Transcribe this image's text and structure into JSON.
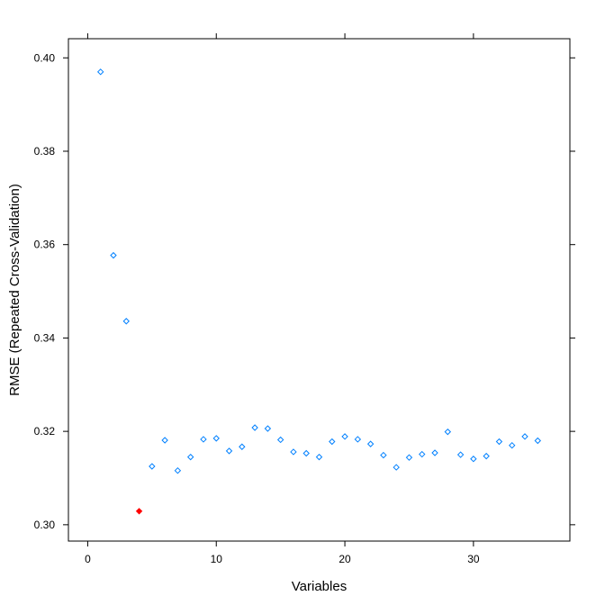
{
  "chart_data": {
    "type": "scatter",
    "title": "",
    "xlabel": "Variables",
    "ylabel": "RMSE (Repeated Cross-Validation)",
    "xlim": [
      -1.5,
      37.5
    ],
    "ylim": [
      0.2965,
      0.4041
    ],
    "x_ticks": [
      0,
      10,
      20,
      30
    ],
    "x_tick_labels": [
      "0",
      "10",
      "20",
      "30"
    ],
    "y_ticks": [
      0.3,
      0.32,
      0.34,
      0.36,
      0.38,
      0.4
    ],
    "y_tick_labels": [
      "0.30",
      "0.32",
      "0.34",
      "0.36",
      "0.38",
      "0.40"
    ],
    "grid": false,
    "legend": "none",
    "point_color": "#0080ff",
    "highlight_color": "#ff0000",
    "series": [
      {
        "x": [
          1,
          2,
          3,
          4,
          5,
          6,
          7,
          8,
          9,
          10,
          11,
          12,
          13,
          14,
          15,
          16,
          17,
          18,
          19,
          20,
          21,
          22,
          23,
          24,
          25,
          26,
          27,
          28,
          29,
          30,
          31,
          32,
          33,
          34,
          35
        ],
        "y": [
          0.397,
          0.3577,
          0.3436,
          0.3029,
          0.3125,
          0.3181,
          0.3116,
          0.3145,
          0.3183,
          0.3185,
          0.3158,
          0.3167,
          0.3208,
          0.3206,
          0.3182,
          0.3156,
          0.3153,
          0.3145,
          0.3178,
          0.3189,
          0.3183,
          0.3173,
          0.3149,
          0.3123,
          0.3144,
          0.3151,
          0.3154,
          0.3199,
          0.315,
          0.3141,
          0.3147,
          0.3178,
          0.317,
          0.3189,
          0.318
        ]
      }
    ],
    "highlight_index": 3
  }
}
